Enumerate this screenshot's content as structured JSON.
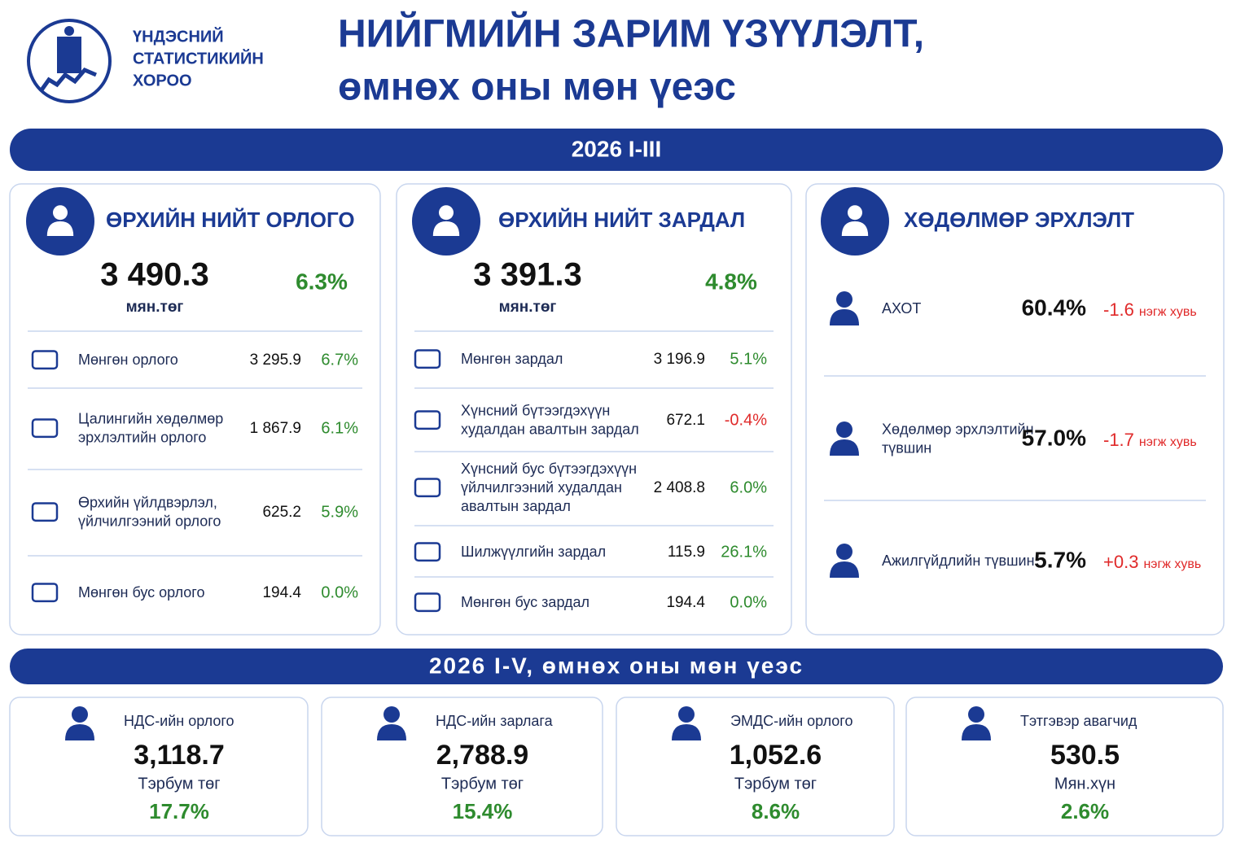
{
  "header": {
    "org": [
      "ҮНДЭСНИЙ",
      "СТАТИСТИКИЙН",
      "ХОРОО"
    ],
    "title": [
      "НИЙГМИЙН ЗАРИМ ҮЗҮҮЛЭЛТ,",
      "өмнөх оны мөн үеэс"
    ]
  },
  "section1": {
    "label": "2026 I-III",
    "panels": [
      {
        "title": "ӨРХИЙН НИЙТ ОРЛОГО",
        "total": "3 490.3",
        "unit": "мян.төг",
        "change": "6.3%",
        "rows": [
          {
            "label": [
              "Мөнгөн орлого"
            ],
            "value": "3 295.9",
            "change": "6.7%",
            "color": "#2e8b2e"
          },
          {
            "label": [
              "Цалингийн хөдөлмөр",
              "эрхлэлтийн орлого"
            ],
            "value": "1 867.9",
            "change": "6.1%",
            "color": "#2e8b2e"
          },
          {
            "label": [
              "Өрхийн үйлдвэрлэл,",
              "үйлчилгээний орлого"
            ],
            "value": "625.2",
            "change": "5.9%",
            "color": "#2e8b2e"
          },
          {
            "label": [
              "Мөнгөн бус орлого"
            ],
            "value": "194.4",
            "change": "0.0%",
            "color": "#2e8b2e"
          }
        ]
      },
      {
        "title": "ӨРХИЙН НИЙТ ЗАРДАЛ",
        "total": "3 391.3",
        "unit": "мян.төг",
        "change": "4.8%",
        "rows": [
          {
            "label": [
              "Мөнгөн зардал"
            ],
            "value": "3 196.9",
            "change": "5.1%",
            "color": "#2e8b2e"
          },
          {
            "label": [
              "Хүнсний бүтээгдэхүүн",
              "худалдан авалтын зардал"
            ],
            "value": "672.1",
            "change": "-0.4%",
            "color": "#e02a2a"
          },
          {
            "label": [
              "Хүнсний бус бүтээгдэхүүн",
              "үйлчилгээний худалдан",
              "авалтын зардал"
            ],
            "value": "2 408.8",
            "change": "6.0%",
            "color": "#2e8b2e"
          },
          {
            "label": [
              "Шилжүүлгийн зардал"
            ],
            "value": "115.9",
            "change": "26.1%",
            "color": "#2e8b2e"
          },
          {
            "label": [
              "Мөнгөн бус зардал"
            ],
            "value": "194.4",
            "change": "0.0%",
            "color": "#2e8b2e"
          }
        ]
      },
      {
        "title": "ХӨДӨЛМӨР ЭРХЛЭЛТ",
        "rows": [
          {
            "label": [
              "АХОТ"
            ],
            "value": "60.4%",
            "change": "-1.6",
            "unit": "нэгж хувь",
            "color": "#e02a2a"
          },
          {
            "label": [
              "Хөдөлмөр эрхлэлтийн",
              "түвшин"
            ],
            "value": "57.0%",
            "change": "-1.7",
            "unit": "нэгж хувь",
            "color": "#e02a2a"
          },
          {
            "label": [
              "Ажилгүйдлийн түвшин"
            ],
            "value": "5.7%",
            "change": "+0.3",
            "unit": "нэгж хувь",
            "color": "#e02a2a"
          }
        ]
      }
    ]
  },
  "section2": {
    "label": "2026 I-V, өмнөх оны мөн үеэс",
    "cards": [
      {
        "title": "НДС-ийн орлого",
        "value": "3,118.7",
        "unit": "Тэрбум төг",
        "change": "17.7%"
      },
      {
        "title": "НДС-ийн зарлага",
        "value": "2,788.9",
        "unit": "Тэрбум төг",
        "change": "15.4%"
      },
      {
        "title": "ЭМДС-ийн орлого",
        "value": "1,052.6",
        "unit": "Тэрбум төг",
        "change": "8.6%"
      },
      {
        "title": "Тэтгэвэр авагчид",
        "value": "530.5",
        "unit": "Мян.хүн",
        "change": "2.6%"
      }
    ]
  }
}
